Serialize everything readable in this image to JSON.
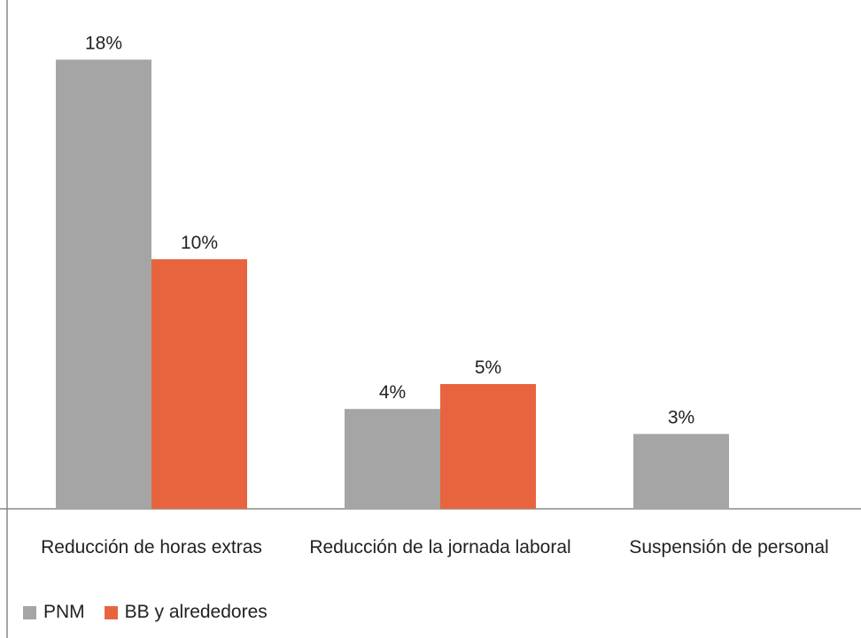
{
  "chart_data": {
    "type": "bar",
    "categories": [
      "Reducción de horas extras",
      "Reducción de la jornada laboral",
      "Suspensión de personal"
    ],
    "series": [
      {
        "name": "PNM",
        "color": "#a5a5a5",
        "values": [
          18,
          4,
          3
        ],
        "value_labels": [
          "18%",
          "4%",
          "3%"
        ]
      },
      {
        "name": "BB y alrededores",
        "color": "#e8643f",
        "values": [
          10,
          5,
          null
        ],
        "value_labels": [
          "10%",
          "5%",
          null
        ]
      }
    ],
    "ylim": [
      0,
      20
    ],
    "legend": "bottom-left"
  }
}
